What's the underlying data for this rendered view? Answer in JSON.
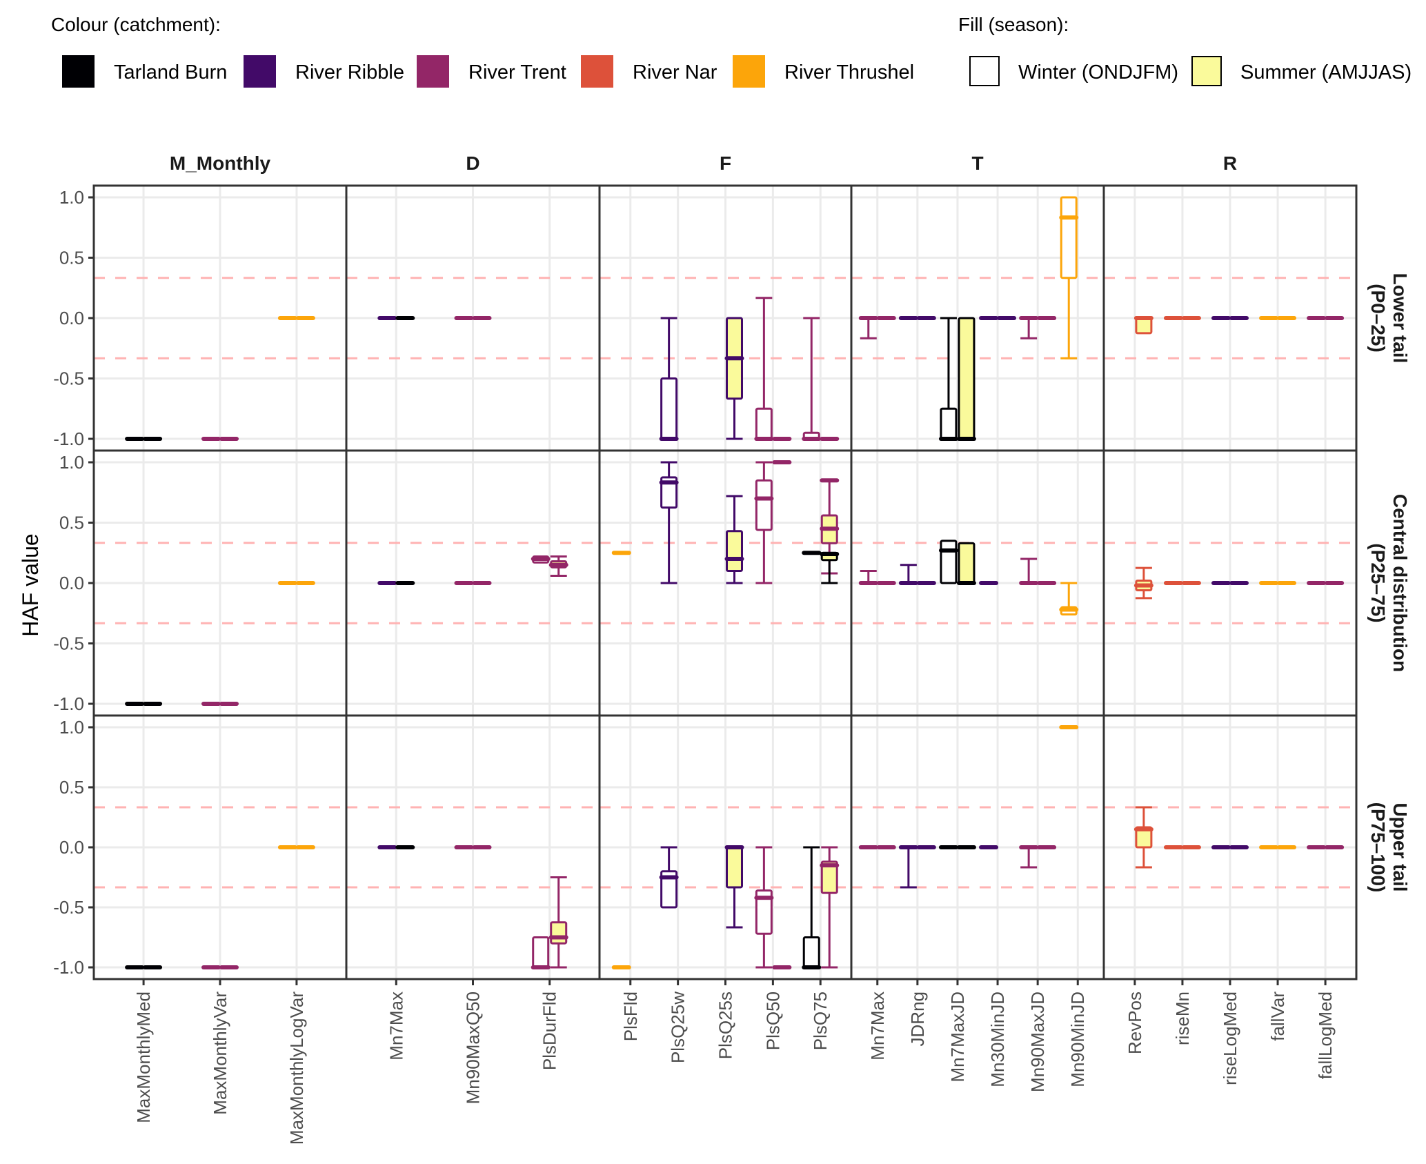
{
  "chart_data": {
    "type": "boxplot",
    "title": "",
    "xlabel": "",
    "ylabel": "HAF value",
    "ylim": [
      -1.0,
      1.0
    ],
    "yticks": [
      "1.0",
      "0.5",
      "0.0",
      "-0.5",
      "-1.0"
    ],
    "ytick_values": [
      1.0,
      0.5,
      0.0,
      -0.5,
      -1.0
    ],
    "reference_lines": [
      0.333,
      -0.333
    ],
    "reference_line_color": "#ffb3b3",
    "grid": true,
    "legend": {
      "placement": "top",
      "colour_title": "Colour (catchment):",
      "fill_title": "Fill (season):",
      "catchments": [
        {
          "key": "tarland",
          "name": "Tarland Burn",
          "color": "#000004"
        },
        {
          "key": "ribble",
          "name": "River Ribble",
          "color": "#420a68"
        },
        {
          "key": "trent",
          "name": "River Trent",
          "color": "#932667"
        },
        {
          "key": "nar",
          "name": "River Nar",
          "color": "#dd513a"
        },
        {
          "key": "thrushel",
          "name": "River Thrushel",
          "color": "#fca50a"
        }
      ],
      "seasons": [
        {
          "key": "winter",
          "name": "Winter (ONDJFM)",
          "fill": "#ffffff"
        },
        {
          "key": "summer",
          "name": "Summer (AMJJAS)",
          "fill": "#fafa9b"
        }
      ]
    },
    "facet_columns": [
      {
        "name": "M_Monthly",
        "metrics": [
          "MaxMonthlyMed",
          "MaxMonthlyVar",
          "MaxMonthlyLogVar"
        ]
      },
      {
        "name": "D",
        "metrics": [
          "Mn7Max",
          "Mn90MaxQ50",
          "PlsDurFld"
        ]
      },
      {
        "name": "F",
        "metrics": [
          "PlsFld",
          "PlsQ25w",
          "PlsQ25s",
          "PlsQ50",
          "PlsQ75"
        ]
      },
      {
        "name": "T",
        "metrics": [
          "Mn7Max",
          "JDRng",
          "Mn7MaxJD",
          "Mn30MinJD",
          "Mn90MaxJD",
          "Mn90MinJD"
        ]
      },
      {
        "name": "R",
        "metrics": [
          "RevPos",
          "riseMn",
          "riseLogMed",
          "fallVar",
          "fallLogMed"
        ]
      }
    ],
    "facet_rows": [
      {
        "key": "lower",
        "name": "Lower tail",
        "sub": "(P0–25)"
      },
      {
        "key": "central",
        "name": "Central distribution",
        "sub": "(P25–75)"
      },
      {
        "key": "upper",
        "name": "Upper tail",
        "sub": "(P75–100)"
      }
    ],
    "boxes_note": "each box: [col, metric index, row, catchment, season, min, q1, median, q3, max]",
    "boxes": [
      [
        0,
        0,
        "lower",
        "tarland",
        "winter",
        -1,
        -1,
        -1,
        -1,
        -1
      ],
      [
        0,
        0,
        "lower",
        "tarland",
        "summer",
        -1,
        -1,
        -1,
        -1,
        -1
      ],
      [
        0,
        1,
        "lower",
        "trent",
        "winter",
        -1,
        -1,
        -1,
        -1,
        -1
      ],
      [
        0,
        1,
        "lower",
        "trent",
        "summer",
        -1,
        -1,
        -1,
        -1,
        -1
      ],
      [
        0,
        2,
        "lower",
        "thrushel",
        "winter",
        0,
        0,
        0,
        0,
        0
      ],
      [
        0,
        2,
        "lower",
        "thrushel",
        "summer",
        0,
        0,
        0,
        0,
        0
      ],
      [
        1,
        0,
        "lower",
        "ribble",
        "winter",
        0,
        0,
        0,
        0,
        0
      ],
      [
        1,
        0,
        "lower",
        "tarland",
        "summer",
        0,
        0,
        0,
        0,
        0
      ],
      [
        1,
        1,
        "lower",
        "trent",
        "winter",
        0,
        0,
        0,
        0,
        0
      ],
      [
        1,
        1,
        "lower",
        "trent",
        "summer",
        0,
        0,
        0,
        0,
        0
      ],
      [
        2,
        1,
        "lower",
        "ribble",
        "winter",
        -1,
        -1,
        -1,
        -0.5,
        0
      ],
      [
        2,
        2,
        "lower",
        "ribble",
        "summer",
        -1,
        -0.667,
        -0.333,
        0,
        0
      ],
      [
        2,
        3,
        "lower",
        "trent",
        "winter",
        -1,
        -1,
        -1,
        -0.75,
        0.167
      ],
      [
        2,
        3,
        "lower",
        "trent",
        "summer",
        -1,
        -1,
        -1,
        -1,
        -1
      ],
      [
        2,
        4,
        "lower",
        "trent",
        "winter",
        -1,
        -1,
        -1,
        -0.95,
        0
      ],
      [
        2,
        4,
        "lower",
        "trent",
        "summer",
        -1,
        -1,
        -1,
        -1,
        -1
      ],
      [
        3,
        0,
        "lower",
        "trent",
        "winter",
        -0.167,
        0,
        0,
        0,
        0
      ],
      [
        3,
        0,
        "lower",
        "trent",
        "summer",
        0,
        0,
        0,
        0,
        0
      ],
      [
        3,
        1,
        "lower",
        "ribble",
        "winter",
        0,
        0,
        0,
        0,
        0
      ],
      [
        3,
        1,
        "lower",
        "ribble",
        "summer",
        0,
        0,
        0,
        0,
        0
      ],
      [
        3,
        2,
        "lower",
        "tarland",
        "summer",
        -1,
        -1,
        -1,
        0,
        0
      ],
      [
        3,
        2,
        "lower",
        "tarland",
        "winter",
        -1,
        -1,
        -1,
        -0.75,
        0
      ],
      [
        3,
        3,
        "lower",
        "ribble",
        "winter",
        0,
        0,
        0,
        0,
        0
      ],
      [
        3,
        3,
        "lower",
        "ribble",
        "summer",
        0,
        0,
        0,
        0,
        0
      ],
      [
        3,
        4,
        "lower",
        "trent",
        "winter",
        -0.167,
        0,
        0,
        0,
        0
      ],
      [
        3,
        4,
        "lower",
        "trent",
        "summer",
        0,
        0,
        0,
        0,
        0
      ],
      [
        3,
        5,
        "lower",
        "thrushel",
        "winter",
        -0.333,
        0.333,
        0.833,
        1,
        1
      ],
      [
        4,
        0,
        "lower",
        "nar",
        "summer",
        -0.125,
        -0.125,
        0,
        0,
        0
      ],
      [
        4,
        1,
        "lower",
        "nar",
        "winter",
        0,
        0,
        0,
        0,
        0
      ],
      [
        4,
        1,
        "lower",
        "nar",
        "summer",
        0,
        0,
        0,
        0,
        0
      ],
      [
        4,
        2,
        "lower",
        "ribble",
        "winter",
        0,
        0,
        0,
        0,
        0
      ],
      [
        4,
        2,
        "lower",
        "ribble",
        "summer",
        0,
        0,
        0,
        0,
        0
      ],
      [
        4,
        3,
        "lower",
        "thrushel",
        "winter",
        0,
        0,
        0,
        0,
        0
      ],
      [
        4,
        3,
        "lower",
        "thrushel",
        "summer",
        0,
        0,
        0,
        0,
        0
      ],
      [
        4,
        4,
        "lower",
        "trent",
        "winter",
        0,
        0,
        0,
        0,
        0
      ],
      [
        4,
        4,
        "lower",
        "trent",
        "summer",
        0,
        0,
        0,
        0,
        0
      ],
      [
        0,
        0,
        "central",
        "tarland",
        "winter",
        -1,
        -1,
        -1,
        -1,
        -1
      ],
      [
        0,
        0,
        "central",
        "tarland",
        "summer",
        -1,
        -1,
        -1,
        -1,
        -1
      ],
      [
        0,
        1,
        "central",
        "trent",
        "winter",
        -1,
        -1,
        -1,
        -1,
        -1
      ],
      [
        0,
        1,
        "central",
        "trent",
        "summer",
        -1,
        -1,
        -1,
        -1,
        -1
      ],
      [
        0,
        2,
        "central",
        "thrushel",
        "winter",
        0,
        0,
        0,
        0,
        0
      ],
      [
        0,
        2,
        "central",
        "thrushel",
        "summer",
        0,
        0,
        0,
        0,
        0
      ],
      [
        1,
        0,
        "central",
        "ribble",
        "winter",
        0,
        0,
        0,
        0,
        0
      ],
      [
        1,
        0,
        "central",
        "tarland",
        "summer",
        0,
        0,
        0,
        0,
        0
      ],
      [
        1,
        1,
        "central",
        "trent",
        "winter",
        0,
        0,
        0,
        0,
        0
      ],
      [
        1,
        1,
        "central",
        "trent",
        "summer",
        0,
        0,
        0,
        0,
        0
      ],
      [
        1,
        2,
        "central",
        "trent",
        "winter",
        0.17,
        0.17,
        0.2,
        0.22,
        0.22
      ],
      [
        1,
        2,
        "central",
        "trent",
        "summer",
        0.06,
        0.13,
        0.15,
        0.18,
        0.22
      ],
      [
        2,
        0,
        "central",
        "thrushel",
        "winter",
        0.25,
        0.25,
        0.25,
        0.25,
        0.25
      ],
      [
        2,
        1,
        "central",
        "ribble",
        "winter",
        0,
        0.625,
        0.833,
        0.875,
        1
      ],
      [
        2,
        2,
        "central",
        "ribble",
        "summer",
        0,
        0.1,
        0.2,
        0.43,
        0.72
      ],
      [
        2,
        3,
        "central",
        "trent",
        "winter",
        0,
        0.44,
        0.7,
        0.85,
        1
      ],
      [
        2,
        3,
        "central",
        "trent",
        "summer",
        1,
        1,
        1,
        1,
        1
      ],
      [
        2,
        4,
        "central",
        "trent",
        "summer",
        0.08,
        0.33,
        0.45,
        0.56,
        0.85
      ],
      [
        2,
        4,
        "central",
        "tarland",
        "winter",
        0.25,
        0.25,
        0.25,
        0.25,
        0.25
      ],
      [
        2,
        4,
        "central",
        "tarland",
        "summer",
        0,
        0.19,
        0.24,
        0.25,
        0.25
      ],
      [
        2,
        4,
        "central",
        "trent",
        "summer2",
        0.85,
        0.85,
        0.85,
        0.85,
        0.85
      ],
      [
        3,
        0,
        "central",
        "trent",
        "winter",
        0,
        0,
        0,
        0,
        0.1
      ],
      [
        3,
        0,
        "central",
        "trent",
        "summer",
        0,
        0,
        0,
        0,
        0
      ],
      [
        3,
        1,
        "central",
        "ribble",
        "winter",
        0,
        0,
        0,
        0,
        0.15
      ],
      [
        3,
        1,
        "central",
        "ribble",
        "summer",
        0,
        0,
        0,
        0,
        0
      ],
      [
        3,
        2,
        "central",
        "tarland",
        "summer",
        0,
        0,
        0,
        0.33,
        0.33
      ],
      [
        3,
        2,
        "central",
        "tarland",
        "winter",
        0,
        0,
        0.27,
        0.35,
        0.35
      ],
      [
        3,
        3,
        "central",
        "ribble",
        "winter",
        0,
        0,
        0,
        0,
        0
      ],
      [
        3,
        4,
        "central",
        "trent",
        "winter",
        0,
        0,
        0,
        0,
        0.2
      ],
      [
        3,
        4,
        "central",
        "trent",
        "summer",
        0,
        0,
        0,
        0,
        0
      ],
      [
        3,
        5,
        "central",
        "thrushel",
        "winter",
        -0.26,
        -0.26,
        -0.22,
        -0.2,
        0
      ],
      [
        4,
        0,
        "central",
        "nar",
        "summer",
        -0.125,
        -0.06,
        -0.02,
        0.02,
        0.125
      ],
      [
        4,
        1,
        "central",
        "nar",
        "winter",
        0,
        0,
        0,
        0,
        0
      ],
      [
        4,
        1,
        "central",
        "nar",
        "summer",
        0,
        0,
        0,
        0,
        0
      ],
      [
        4,
        2,
        "central",
        "ribble",
        "winter",
        0,
        0,
        0,
        0,
        0
      ],
      [
        4,
        2,
        "central",
        "ribble",
        "summer",
        0,
        0,
        0,
        0,
        0
      ],
      [
        4,
        3,
        "central",
        "thrushel",
        "winter",
        0,
        0,
        0,
        0,
        0
      ],
      [
        4,
        3,
        "central",
        "thrushel",
        "summer",
        0,
        0,
        0,
        0,
        0
      ],
      [
        4,
        4,
        "central",
        "trent",
        "winter",
        0,
        0,
        0,
        0,
        0
      ],
      [
        4,
        4,
        "central",
        "trent",
        "summer",
        0,
        0,
        0,
        0,
        0
      ],
      [
        0,
        0,
        "upper",
        "tarland",
        "winter",
        -1,
        -1,
        -1,
        -1,
        -1
      ],
      [
        0,
        0,
        "upper",
        "tarland",
        "summer",
        -1,
        -1,
        -1,
        -1,
        -1
      ],
      [
        0,
        1,
        "upper",
        "trent",
        "winter",
        -1,
        -1,
        -1,
        -1,
        -1
      ],
      [
        0,
        1,
        "upper",
        "trent",
        "summer",
        -1,
        -1,
        -1,
        -1,
        -1
      ],
      [
        0,
        2,
        "upper",
        "thrushel",
        "winter",
        0,
        0,
        0,
        0,
        0
      ],
      [
        0,
        2,
        "upper",
        "thrushel",
        "summer",
        0,
        0,
        0,
        0,
        0
      ],
      [
        1,
        0,
        "upper",
        "ribble",
        "winter",
        0,
        0,
        0,
        0,
        0
      ],
      [
        1,
        0,
        "upper",
        "tarland",
        "summer",
        0,
        0,
        0,
        0,
        0
      ],
      [
        1,
        1,
        "upper",
        "trent",
        "winter",
        0,
        0,
        0,
        0,
        0
      ],
      [
        1,
        1,
        "upper",
        "trent",
        "summer",
        0,
        0,
        0,
        0,
        0
      ],
      [
        1,
        2,
        "upper",
        "trent",
        "winter",
        -1,
        -1,
        -1,
        -0.75,
        -0.75
      ],
      [
        1,
        2,
        "upper",
        "trent",
        "summer",
        -1,
        -0.8,
        -0.75,
        -0.625,
        -0.25
      ],
      [
        2,
        0,
        "upper",
        "thrushel",
        "winter",
        -1,
        -1,
        -1,
        -1,
        -1
      ],
      [
        2,
        1,
        "upper",
        "ribble",
        "winter",
        -0.5,
        -0.5,
        -0.25,
        -0.2,
        0
      ],
      [
        2,
        2,
        "upper",
        "ribble",
        "summer",
        -0.667,
        -0.333,
        0,
        0,
        0
      ],
      [
        2,
        3,
        "upper",
        "trent",
        "winter",
        -1,
        -0.72,
        -0.42,
        -0.36,
        0
      ],
      [
        2,
        3,
        "upper",
        "trent",
        "summer",
        -1,
        -1,
        -1,
        -1,
        -1
      ],
      [
        2,
        4,
        "upper",
        "trent",
        "summer",
        -1,
        -0.38,
        -0.15,
        -0.12,
        0
      ],
      [
        2,
        4,
        "upper",
        "tarland",
        "winter",
        -1,
        -1,
        -1,
        -0.75,
        0
      ],
      [
        3,
        0,
        "upper",
        "trent",
        "winter",
        0,
        0,
        0,
        0,
        0
      ],
      [
        3,
        0,
        "upper",
        "trent",
        "summer",
        0,
        0,
        0,
        0,
        0
      ],
      [
        3,
        1,
        "upper",
        "ribble",
        "winter",
        -0.333,
        0,
        0,
        0,
        0
      ],
      [
        3,
        1,
        "upper",
        "ribble",
        "summer",
        0,
        0,
        0,
        0,
        0
      ],
      [
        3,
        2,
        "upper",
        "tarland",
        "winter",
        0,
        0,
        0,
        0,
        0
      ],
      [
        3,
        2,
        "upper",
        "tarland",
        "summer",
        0,
        0,
        0,
        0,
        0
      ],
      [
        3,
        3,
        "upper",
        "ribble",
        "winter",
        0,
        0,
        0,
        0,
        0
      ],
      [
        3,
        4,
        "upper",
        "trent",
        "winter",
        -0.167,
        0,
        0,
        0,
        0
      ],
      [
        3,
        4,
        "upper",
        "trent",
        "summer",
        0,
        0,
        0,
        0,
        0
      ],
      [
        3,
        5,
        "upper",
        "thrushel",
        "winter",
        1,
        1,
        1,
        1,
        1
      ],
      [
        4,
        0,
        "upper",
        "nar",
        "summer",
        -0.167,
        0,
        0.15,
        0.167,
        0.333
      ],
      [
        4,
        1,
        "upper",
        "nar",
        "winter",
        0,
        0,
        0,
        0,
        0
      ],
      [
        4,
        1,
        "upper",
        "nar",
        "summer",
        0,
        0,
        0,
        0,
        0
      ],
      [
        4,
        2,
        "upper",
        "ribble",
        "winter",
        0,
        0,
        0,
        0,
        0
      ],
      [
        4,
        2,
        "upper",
        "ribble",
        "summer",
        0,
        0,
        0,
        0,
        0
      ],
      [
        4,
        3,
        "upper",
        "thrushel",
        "winter",
        0,
        0,
        0,
        0,
        0
      ],
      [
        4,
        3,
        "upper",
        "thrushel",
        "summer",
        0,
        0,
        0,
        0,
        0
      ],
      [
        4,
        4,
        "upper",
        "trent",
        "winter",
        0,
        0,
        0,
        0,
        0
      ],
      [
        4,
        4,
        "upper",
        "trent",
        "summer",
        0,
        0,
        0,
        0,
        0
      ]
    ]
  }
}
